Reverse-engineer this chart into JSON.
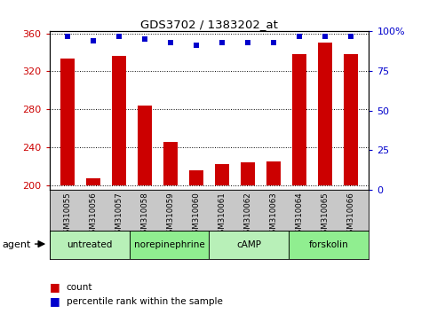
{
  "title": "GDS3702 / 1383202_at",
  "samples": [
    "GSM310055",
    "GSM310056",
    "GSM310057",
    "GSM310058",
    "GSM310059",
    "GSM310060",
    "GSM310061",
    "GSM310062",
    "GSM310063",
    "GSM310064",
    "GSM310065",
    "GSM310066"
  ],
  "counts": [
    333,
    207,
    336,
    284,
    246,
    216,
    222,
    224,
    225,
    338,
    350,
    338
  ],
  "percentiles": [
    97,
    94,
    97,
    95,
    93,
    91,
    93,
    93,
    93,
    97,
    97,
    97
  ],
  "ylim_left": [
    195,
    362
  ],
  "ylim_right": [
    0,
    100
  ],
  "yticks_left": [
    200,
    240,
    280,
    320,
    360
  ],
  "yticks_right": [
    0,
    25,
    50,
    75,
    100
  ],
  "agent_groups": [
    {
      "label": "untreated",
      "start": 0,
      "end": 3,
      "color": "#b8f0b8"
    },
    {
      "label": "norepinephrine",
      "start": 3,
      "end": 6,
      "color": "#90ee90"
    },
    {
      "label": "cAMP",
      "start": 6,
      "end": 9,
      "color": "#b8f0b8"
    },
    {
      "label": "forskolin",
      "start": 9,
      "end": 12,
      "color": "#90ee90"
    }
  ],
  "bar_color": "#cc0000",
  "dot_color": "#0000cc",
  "bar_width": 0.55,
  "grid_color": "#000000",
  "background_color": "#ffffff",
  "tick_color_left": "#cc0000",
  "tick_color_right": "#0000cc",
  "legend_count_color": "#cc0000",
  "legend_pct_color": "#0000cc",
  "agent_label": "agent",
  "sample_bg_color": "#c8c8c8"
}
